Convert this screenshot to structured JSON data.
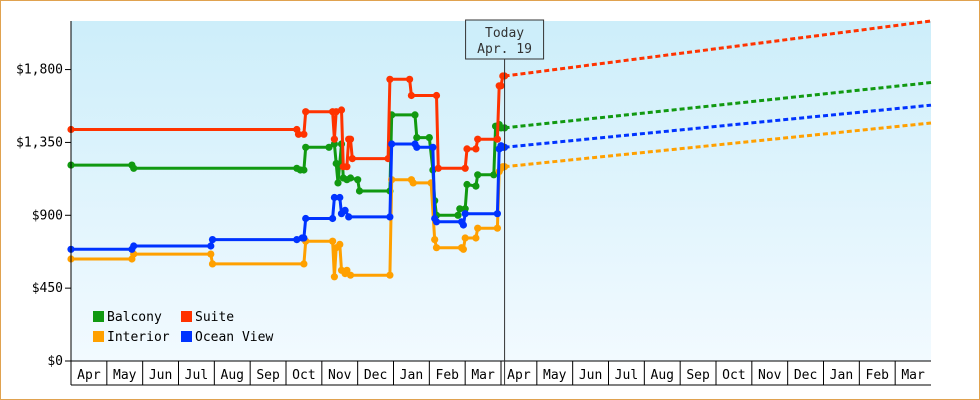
{
  "chart_data": {
    "type": "line",
    "title": "",
    "xlabel": "",
    "ylabel": "",
    "ylim": [
      0,
      2100
    ],
    "yticks": [
      0,
      450,
      900,
      1350,
      1800
    ],
    "ytick_labels": [
      "$0",
      "$450",
      "$900",
      "$1,350",
      "$1,800"
    ],
    "x_months": [
      "Apr",
      "May",
      "Jun",
      "Jul",
      "Aug",
      "Sep",
      "Oct",
      "Nov",
      "Dec",
      "Jan",
      "Feb",
      "Mar",
      "Apr",
      "May",
      "Jun",
      "Jul",
      "Aug",
      "Sep",
      "Oct",
      "Nov",
      "Dec",
      "Jan",
      "Feb",
      "Mar"
    ],
    "xlim": [
      0,
      24
    ],
    "today": {
      "label_line1": "Today",
      "label_line2": "Apr. 19",
      "x": 12.1
    },
    "legend_position": "bottom-left",
    "grid": false,
    "series": [
      {
        "name": "Balcony",
        "color": "#119911",
        "values": [
          [
            0.0,
            1210
          ],
          [
            1.7,
            1210
          ],
          [
            1.75,
            1190
          ],
          [
            6.3,
            1190
          ],
          [
            6.4,
            1180
          ],
          [
            6.5,
            1180
          ],
          [
            6.55,
            1320
          ],
          [
            7.2,
            1320
          ],
          [
            7.35,
            1340
          ],
          [
            7.4,
            1220
          ],
          [
            7.45,
            1100
          ],
          [
            7.55,
            1340
          ],
          [
            7.6,
            1130
          ],
          [
            7.7,
            1120
          ],
          [
            7.8,
            1130
          ],
          [
            8.0,
            1120
          ],
          [
            8.05,
            1050
          ],
          [
            8.9,
            1050
          ],
          [
            8.95,
            1520
          ],
          [
            9.6,
            1520
          ],
          [
            9.65,
            1380
          ],
          [
            10.0,
            1380
          ],
          [
            10.1,
            1180
          ],
          [
            10.15,
            990
          ],
          [
            10.2,
            900
          ],
          [
            10.8,
            900
          ],
          [
            10.85,
            940
          ],
          [
            11.0,
            940
          ],
          [
            11.05,
            1090
          ],
          [
            11.3,
            1080
          ],
          [
            11.35,
            1150
          ],
          [
            11.8,
            1150
          ],
          [
            11.85,
            1450
          ],
          [
            11.95,
            1460
          ],
          [
            12.0,
            1440
          ],
          [
            12.1,
            1440
          ]
        ],
        "forecast": [
          [
            12.1,
            1440
          ],
          [
            24.0,
            1720
          ]
        ]
      },
      {
        "name": "Suite",
        "color": "#ff3300",
        "values": [
          [
            0.0,
            1430
          ],
          [
            6.3,
            1430
          ],
          [
            6.35,
            1400
          ],
          [
            6.5,
            1400
          ],
          [
            6.55,
            1540
          ],
          [
            7.3,
            1540
          ],
          [
            7.35,
            1370
          ],
          [
            7.4,
            1540
          ],
          [
            7.55,
            1550
          ],
          [
            7.6,
            1200
          ],
          [
            7.7,
            1200
          ],
          [
            7.75,
            1370
          ],
          [
            7.8,
            1370
          ],
          [
            7.85,
            1250
          ],
          [
            8.85,
            1250
          ],
          [
            8.9,
            1740
          ],
          [
            9.45,
            1740
          ],
          [
            9.5,
            1640
          ],
          [
            9.9,
            1640
          ],
          [
            9.95,
            1640
          ],
          [
            10.2,
            1640
          ],
          [
            10.25,
            1190
          ],
          [
            11.0,
            1190
          ],
          [
            11.05,
            1310
          ],
          [
            11.2,
            1310
          ],
          [
            11.3,
            1310
          ],
          [
            11.35,
            1370
          ],
          [
            11.9,
            1370
          ],
          [
            11.95,
            1700
          ],
          [
            12.0,
            1700
          ],
          [
            12.05,
            1760
          ],
          [
            12.1,
            1760
          ]
        ],
        "forecast": [
          [
            12.1,
            1760
          ],
          [
            24.0,
            2100
          ]
        ]
      },
      {
        "name": "Interior",
        "color": "#ffa000",
        "values": [
          [
            0.0,
            630
          ],
          [
            1.7,
            630
          ],
          [
            1.75,
            660
          ],
          [
            3.9,
            660
          ],
          [
            3.95,
            600
          ],
          [
            6.3,
            600
          ],
          [
            6.5,
            600
          ],
          [
            6.55,
            740
          ],
          [
            7.3,
            740
          ],
          [
            7.35,
            520
          ],
          [
            7.4,
            700
          ],
          [
            7.5,
            720
          ],
          [
            7.55,
            560
          ],
          [
            7.65,
            540
          ],
          [
            7.7,
            560
          ],
          [
            7.8,
            530
          ],
          [
            8.9,
            530
          ],
          [
            8.95,
            1120
          ],
          [
            9.5,
            1120
          ],
          [
            9.55,
            1100
          ],
          [
            10.0,
            1100
          ],
          [
            10.05,
            1100
          ],
          [
            10.15,
            750
          ],
          [
            10.2,
            700
          ],
          [
            10.9,
            700
          ],
          [
            10.95,
            690
          ],
          [
            11.0,
            760
          ],
          [
            11.3,
            760
          ],
          [
            11.35,
            820
          ],
          [
            11.9,
            820
          ],
          [
            11.95,
            1170
          ],
          [
            12.0,
            1190
          ],
          [
            12.05,
            1200
          ],
          [
            12.1,
            1200
          ]
        ],
        "forecast": [
          [
            12.1,
            1200
          ],
          [
            24.0,
            1470
          ]
        ]
      },
      {
        "name": "Ocean View",
        "color": "#0033ff",
        "values": [
          [
            0.0,
            690
          ],
          [
            1.7,
            690
          ],
          [
            1.75,
            710
          ],
          [
            3.9,
            710
          ],
          [
            3.95,
            750
          ],
          [
            6.3,
            750
          ],
          [
            6.45,
            760
          ],
          [
            6.5,
            760
          ],
          [
            6.55,
            880
          ],
          [
            7.3,
            880
          ],
          [
            7.35,
            1010
          ],
          [
            7.5,
            1010
          ],
          [
            7.55,
            910
          ],
          [
            7.65,
            930
          ],
          [
            7.75,
            890
          ],
          [
            7.8,
            890
          ],
          [
            8.9,
            890
          ],
          [
            8.95,
            1340
          ],
          [
            9.6,
            1340
          ],
          [
            9.65,
            1320
          ],
          [
            10.1,
            1320
          ],
          [
            10.15,
            880
          ],
          [
            10.2,
            860
          ],
          [
            10.9,
            860
          ],
          [
            10.95,
            840
          ],
          [
            11.0,
            910
          ],
          [
            11.9,
            910
          ],
          [
            11.95,
            1310
          ],
          [
            12.0,
            1330
          ],
          [
            12.05,
            1320
          ],
          [
            12.1,
            1320
          ]
        ],
        "forecast": [
          [
            12.1,
            1320
          ],
          [
            24.0,
            1580
          ]
        ]
      }
    ]
  }
}
